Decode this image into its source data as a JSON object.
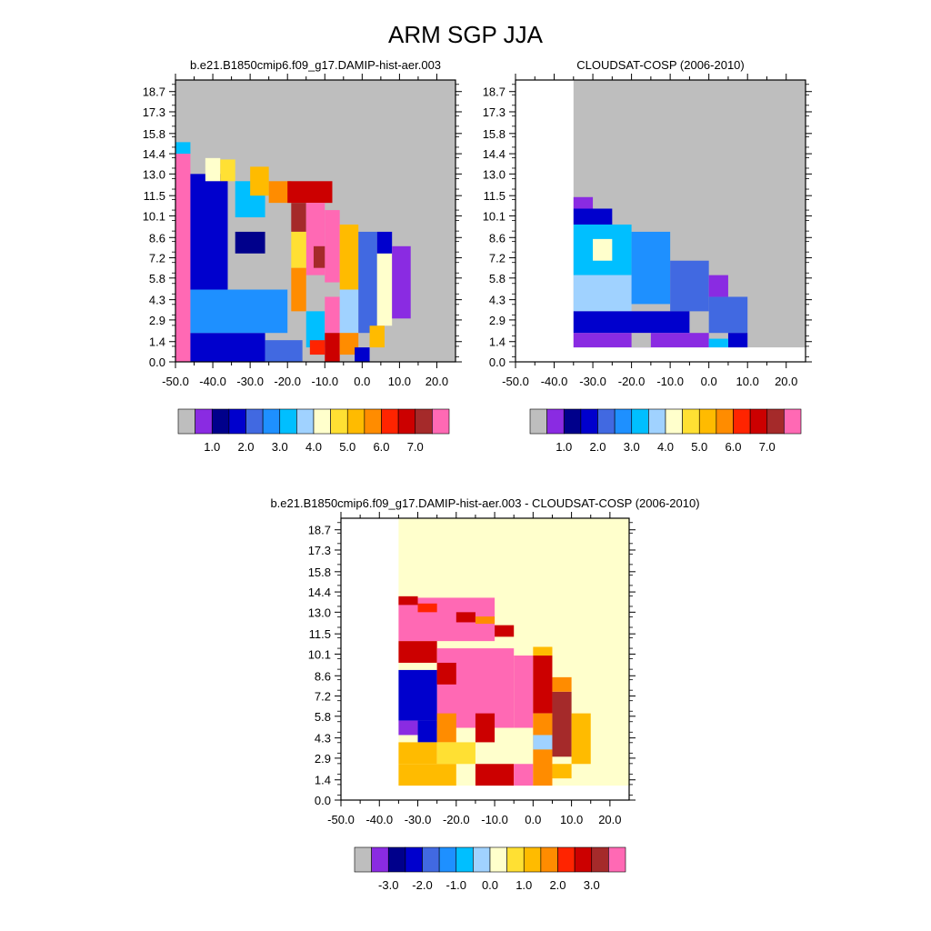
{
  "title": "ARM SGP JJA",
  "chart_data": [
    {
      "type": "heatmap",
      "title": "b.e21.B1850cmip6.f09_g17.DAMIP-hist-aer.003",
      "xlabel": "",
      "ylabel": "",
      "xlim": [
        -50,
        25
      ],
      "ylim": [
        0,
        19.5
      ],
      "x_ticks": [
        "-50.0",
        "-40.0",
        "-30.0",
        "-20.0",
        "-10.0",
        "0.0",
        "10.0",
        "20.0"
      ],
      "y_ticks": [
        "0.0",
        "1.4",
        "2.9",
        "4.3",
        "5.8",
        "7.2",
        "8.6",
        "10.1",
        "11.5",
        "13.0",
        "14.4",
        "15.8",
        "17.3",
        "18.7"
      ],
      "colorbar_labels": [
        "1.0",
        "2.0",
        "3.0",
        "4.0",
        "5.0",
        "6.0",
        "7.0"
      ],
      "background": "#bebebe",
      "cells": [
        {
          "x": -50,
          "y": 0,
          "w": 4,
          "h": 14.4,
          "c": 15
        },
        {
          "x": -50,
          "y": 14.4,
          "w": 4,
          "h": 0.8,
          "c": 6
        },
        {
          "x": -46,
          "y": 0,
          "w": 20,
          "h": 2,
          "c": 3
        },
        {
          "x": -26,
          "y": 0,
          "w": 10,
          "h": 1.5,
          "c": 4
        },
        {
          "x": -46,
          "y": 2,
          "w": 26,
          "h": 3,
          "c": 5
        },
        {
          "x": -46,
          "y": 5,
          "w": 10,
          "h": 8,
          "c": 3
        },
        {
          "x": -42,
          "y": 12.5,
          "w": 4,
          "h": 1.6,
          "c": 8
        },
        {
          "x": -38,
          "y": 12.5,
          "w": 4,
          "h": 1.5,
          "c": 9
        },
        {
          "x": -34,
          "y": 7.5,
          "w": 8,
          "h": 1.5,
          "c": 2
        },
        {
          "x": -32,
          "y": 5.5,
          "w": 8,
          "h": 1.5,
          "c": 0
        },
        {
          "x": -34,
          "y": 10,
          "w": 8,
          "h": 2.5,
          "c": 6
        },
        {
          "x": -30,
          "y": 11.5,
          "w": 5,
          "h": 2,
          "c": 10
        },
        {
          "x": -25,
          "y": 11,
          "w": 6,
          "h": 1.5,
          "c": 11
        },
        {
          "x": -20,
          "y": 11,
          "w": 12,
          "h": 1.5,
          "c": 13
        },
        {
          "x": -19,
          "y": 9,
          "w": 4,
          "h": 2,
          "c": 14
        },
        {
          "x": -15,
          "y": 6,
          "w": 5,
          "h": 5,
          "c": 15
        },
        {
          "x": -19,
          "y": 6.5,
          "w": 4,
          "h": 2.5,
          "c": 9
        },
        {
          "x": -19,
          "y": 3.5,
          "w": 4,
          "h": 3,
          "c": 11
        },
        {
          "x": -10,
          "y": 5.5,
          "w": 4,
          "h": 5,
          "c": 15
        },
        {
          "x": -13,
          "y": 6.5,
          "w": 3,
          "h": 1.5,
          "c": 14
        },
        {
          "x": -15,
          "y": 1,
          "w": 5,
          "h": 2.5,
          "c": 6
        },
        {
          "x": -10,
          "y": 2,
          "w": 4,
          "h": 2.5,
          "c": 15
        },
        {
          "x": -10,
          "y": 0,
          "w": 4,
          "h": 2,
          "c": 13
        },
        {
          "x": -14,
          "y": 0.5,
          "w": 4,
          "h": 1,
          "c": 12
        },
        {
          "x": -6,
          "y": 5,
          "w": 5,
          "h": 4.5,
          "c": 10
        },
        {
          "x": -6,
          "y": 2,
          "w": 5,
          "h": 3,
          "c": 7
        },
        {
          "x": -6,
          "y": 0.5,
          "w": 5,
          "h": 1.5,
          "c": 11
        },
        {
          "x": -1,
          "y": 2,
          "w": 5,
          "h": 7,
          "c": 4
        },
        {
          "x": 4,
          "y": 2.5,
          "w": 4,
          "h": 5,
          "c": 8
        },
        {
          "x": 4,
          "y": 7.5,
          "w": 4,
          "h": 1.5,
          "c": 3
        },
        {
          "x": 8,
          "y": 3,
          "w": 5,
          "h": 5,
          "c": 1
        },
        {
          "x": 2,
          "y": 1,
          "w": 4,
          "h": 1.5,
          "c": 10
        },
        {
          "x": -2,
          "y": 0,
          "w": 4,
          "h": 1,
          "c": 3
        }
      ]
    },
    {
      "type": "heatmap",
      "title": "CLOUDSAT-COSP (2006-2010)",
      "xlabel": "",
      "ylabel": "",
      "xlim": [
        -50,
        25
      ],
      "ylim": [
        0,
        19.5
      ],
      "x_ticks": [
        "-50.0",
        "-40.0",
        "-30.0",
        "-20.0",
        "-10.0",
        "0.0",
        "10.0",
        "20.0"
      ],
      "y_ticks": [
        "0.0",
        "1.4",
        "2.9",
        "4.3",
        "5.8",
        "7.2",
        "8.6",
        "10.1",
        "11.5",
        "13.0",
        "14.4",
        "15.8",
        "17.3",
        "18.7"
      ],
      "colorbar_labels": [
        "1.0",
        "2.0",
        "3.0",
        "4.0",
        "5.0",
        "6.0",
        "7.0"
      ],
      "background": "#bebebe",
      "data_region": {
        "x": [
          -35,
          25
        ],
        "y": [
          1,
          19.5
        ]
      },
      "cells": [
        {
          "x": -35,
          "y": 10.6,
          "w": 5,
          "h": 0.8,
          "c": 1
        },
        {
          "x": -35,
          "y": 9.5,
          "w": 10,
          "h": 1.1,
          "c": 3
        },
        {
          "x": -35,
          "y": 6,
          "w": 15,
          "h": 3.5,
          "c": 6
        },
        {
          "x": -35,
          "y": 3.5,
          "w": 15,
          "h": 2.5,
          "c": 7
        },
        {
          "x": -30,
          "y": 7,
          "w": 5,
          "h": 1.5,
          "c": 8
        },
        {
          "x": -20,
          "y": 4,
          "w": 10,
          "h": 5,
          "c": 5
        },
        {
          "x": -10,
          "y": 3.5,
          "w": 10,
          "h": 3.5,
          "c": 4
        },
        {
          "x": -35,
          "y": 2,
          "w": 30,
          "h": 1.5,
          "c": 3
        },
        {
          "x": -35,
          "y": 1,
          "w": 35,
          "h": 1,
          "c": 1
        },
        {
          "x": 0,
          "y": 2,
          "w": 10,
          "h": 2.5,
          "c": 4
        },
        {
          "x": 0,
          "y": 4.5,
          "w": 5,
          "h": 1.5,
          "c": 1
        },
        {
          "x": 5,
          "y": 1,
          "w": 5,
          "h": 1,
          "c": 3
        },
        {
          "x": -20,
          "y": 1,
          "w": 5,
          "h": 1,
          "c": 0
        },
        {
          "x": 0,
          "y": 1,
          "w": 5,
          "h": 0.6,
          "c": 6
        }
      ]
    },
    {
      "type": "heatmap",
      "title": "b.e21.B1850cmip6.f09_g17.DAMIP-hist-aer.003 - CLOUDSAT-COSP (2006-2010)",
      "xlabel": "",
      "ylabel": "",
      "xlim": [
        -50,
        25
      ],
      "ylim": [
        0,
        19.5
      ],
      "x_ticks": [
        "-50.0",
        "-40.0",
        "-30.0",
        "-20.0",
        "-10.0",
        "0.0",
        "10.0",
        "20.0"
      ],
      "y_ticks": [
        "0.0",
        "1.4",
        "2.9",
        "4.3",
        "5.8",
        "7.2",
        "8.6",
        "10.1",
        "11.5",
        "13.0",
        "14.4",
        "15.8",
        "17.3",
        "18.7"
      ],
      "colorbar_labels": [
        "-3.0",
        "-2.0",
        "-1.0",
        "0.0",
        "1.0",
        "2.0",
        "3.0"
      ],
      "background": "#ffffcc",
      "data_region": {
        "x": [
          -35,
          25
        ],
        "y": [
          1,
          19.5
        ]
      },
      "cells": [
        {
          "x": -35,
          "y": 11,
          "w": 25,
          "h": 3,
          "c": 15
        },
        {
          "x": -35,
          "y": 13.5,
          "w": 5,
          "h": 0.6,
          "c": 13
        },
        {
          "x": -30,
          "y": 13,
          "w": 5,
          "h": 0.6,
          "c": 12
        },
        {
          "x": -20,
          "y": 12.3,
          "w": 5,
          "h": 0.7,
          "c": 13
        },
        {
          "x": -15,
          "y": 12.2,
          "w": 5,
          "h": 0.5,
          "c": 11
        },
        {
          "x": -10,
          "y": 11.3,
          "w": 5,
          "h": 0.8,
          "c": 13
        },
        {
          "x": -35,
          "y": 9.5,
          "w": 10,
          "h": 1.5,
          "c": 13
        },
        {
          "x": -25,
          "y": 5,
          "w": 20,
          "h": 5.5,
          "c": 15
        },
        {
          "x": -5,
          "y": 5,
          "w": 5,
          "h": 5,
          "c": 15
        },
        {
          "x": -35,
          "y": 5.5,
          "w": 10,
          "h": 3.5,
          "c": 3
        },
        {
          "x": -35,
          "y": 4.5,
          "w": 5,
          "h": 1,
          "c": 1
        },
        {
          "x": -30,
          "y": 4,
          "w": 5,
          "h": 1.5,
          "c": 3
        },
        {
          "x": -25,
          "y": 8,
          "w": 5,
          "h": 1.5,
          "c": 13
        },
        {
          "x": -25,
          "y": 4,
          "w": 5,
          "h": 2,
          "c": 11
        },
        {
          "x": -15,
          "y": 4,
          "w": 5,
          "h": 2,
          "c": 13
        },
        {
          "x": -35,
          "y": 2.5,
          "w": 10,
          "h": 1.5,
          "c": 10
        },
        {
          "x": -25,
          "y": 2.5,
          "w": 10,
          "h": 1.5,
          "c": 9
        },
        {
          "x": -35,
          "y": 1,
          "w": 15,
          "h": 1.5,
          "c": 10
        },
        {
          "x": -15,
          "y": 1,
          "w": 10,
          "h": 1.5,
          "c": 13
        },
        {
          "x": -5,
          "y": 1,
          "w": 5,
          "h": 1.5,
          "c": 15
        },
        {
          "x": 0,
          "y": 6,
          "w": 5,
          "h": 4,
          "c": 13
        },
        {
          "x": 0,
          "y": 1,
          "w": 5,
          "h": 5,
          "c": 11
        },
        {
          "x": 0,
          "y": 3.5,
          "w": 5,
          "h": 1,
          "c": 7
        },
        {
          "x": 5,
          "y": 3,
          "w": 5,
          "h": 4.5,
          "c": 14
        },
        {
          "x": 5,
          "y": 7.5,
          "w": 5,
          "h": 1,
          "c": 11
        },
        {
          "x": 10,
          "y": 2.5,
          "w": 5,
          "h": 3.5,
          "c": 10
        },
        {
          "x": 5,
          "y": 1.5,
          "w": 5,
          "h": 1,
          "c": 10
        },
        {
          "x": 0,
          "y": 10,
          "w": 5,
          "h": 0.6,
          "c": 10
        }
      ]
    }
  ],
  "palettes": {
    "sequential": [
      "#bebebe",
      "#8a2be2",
      "#00008b",
      "#0000cd",
      "#4169e1",
      "#1e90ff",
      "#00bfff",
      "#a0d2ff",
      "#ffffcc",
      "#ffe033",
      "#ffbb00",
      "#ff8c00",
      "#ff2400",
      "#cc0000",
      "#a52a2a",
      "#ff69b4"
    ]
  }
}
